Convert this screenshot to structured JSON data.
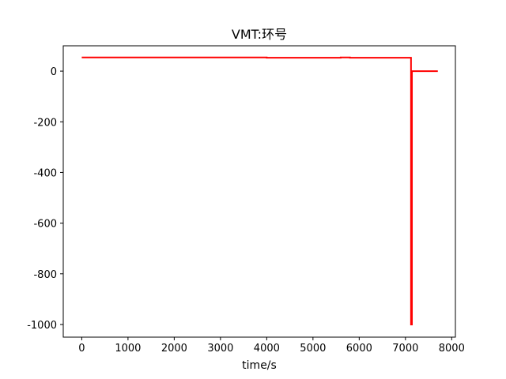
{
  "chart_data": {
    "type": "line",
    "title": "VMT:环号",
    "xlabel": "time/s",
    "ylabel": "",
    "xlim": [
      -400,
      8080
    ],
    "ylim": [
      -1050,
      100
    ],
    "xticks": [
      0,
      1000,
      2000,
      3000,
      4000,
      5000,
      6000,
      7000,
      8000
    ],
    "xtick_labels": [
      "0",
      "1000",
      "2000",
      "3000",
      "4000",
      "5000",
      "6000",
      "7000",
      "8000"
    ],
    "yticks": [
      0,
      -200,
      -400,
      -600,
      -800,
      -1000
    ],
    "ytick_labels": [
      "0",
      "-200",
      "-400",
      "-600",
      "-800",
      "-1000"
    ],
    "grid": false,
    "series": [
      {
        "color": "#ff0000",
        "x": [
          0,
          4000,
          4000,
          5600,
          5600,
          5800,
          5800,
          7120,
          7120,
          7140,
          7140,
          7700
        ],
        "y": [
          54,
          54,
          53,
          53,
          54,
          54,
          53,
          53,
          -1000,
          -1000,
          0,
          0
        ]
      }
    ]
  }
}
